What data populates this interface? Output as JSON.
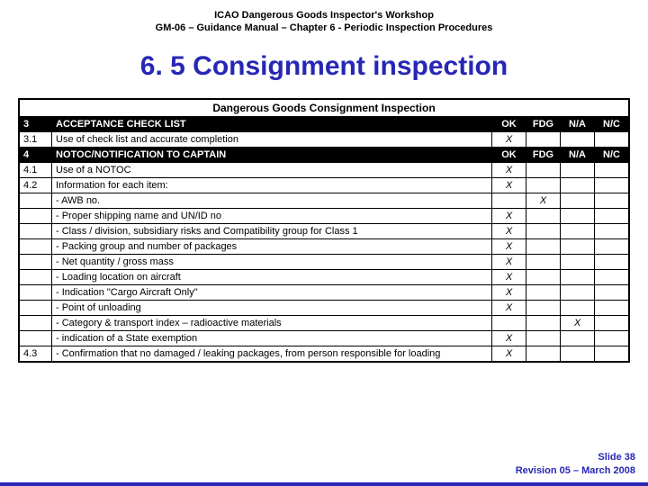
{
  "header": {
    "line1": "ICAO Dangerous Goods Inspector's Workshop",
    "line2": "GM-06 – Guidance Manual – Chapter 6 - Periodic Inspection Procedures"
  },
  "title": "6. 5 Consignment inspection",
  "table": {
    "caption": "Dangerous Goods Consignment Inspection",
    "columns": [
      "OK",
      "FDG",
      "N/A",
      "N/C"
    ],
    "sections": [
      {
        "num": "3",
        "label": "ACCEPTANCE CHECK LIST",
        "rows": [
          {
            "num": "3.1",
            "desc": "Use of check list and accurate completion",
            "ok": "X",
            "fdg": "",
            "na": "",
            "nc": ""
          }
        ]
      },
      {
        "num": "4",
        "label": "NOTOC/NOTIFICATION TO CAPTAIN",
        "rows": [
          {
            "num": "4.1",
            "desc": "Use of a NOTOC",
            "ok": "X",
            "fdg": "",
            "na": "",
            "nc": ""
          },
          {
            "num": "4.2",
            "desc": "Information for each item:",
            "ok": "X",
            "fdg": "",
            "na": "",
            "nc": ""
          },
          {
            "num": "",
            "desc": "- AWB no.",
            "ok": "",
            "fdg": "X",
            "na": "",
            "nc": ""
          },
          {
            "num": "",
            "desc": "- Proper shipping name and UN/ID no",
            "ok": "X",
            "fdg": "",
            "na": "",
            "nc": ""
          },
          {
            "num": "",
            "desc": "- Class / division, subsidiary risks and Compatibility group for Class 1",
            "ok": "X",
            "fdg": "",
            "na": "",
            "nc": ""
          },
          {
            "num": "",
            "desc": "- Packing group and number of packages",
            "ok": "X",
            "fdg": "",
            "na": "",
            "nc": ""
          },
          {
            "num": "",
            "desc": "- Net quantity / gross mass",
            "ok": "X",
            "fdg": "",
            "na": "",
            "nc": ""
          },
          {
            "num": "",
            "desc": "- Loading location on aircraft",
            "ok": "X",
            "fdg": "",
            "na": "",
            "nc": ""
          },
          {
            "num": "",
            "desc": "- Indication \"Cargo Aircraft Only\"",
            "ok": "X",
            "fdg": "",
            "na": "",
            "nc": ""
          },
          {
            "num": "",
            "desc": "- Point of unloading",
            "ok": "X",
            "fdg": "",
            "na": "",
            "nc": ""
          },
          {
            "num": "",
            "desc": "- Category & transport index – radioactive materials",
            "ok": "",
            "fdg": "",
            "na": "X",
            "nc": ""
          },
          {
            "num": "",
            "desc": "-  indication of a State exemption",
            "ok": "X",
            "fdg": "",
            "na": "",
            "nc": ""
          },
          {
            "num": "4.3",
            "desc": "- Confirmation that no damaged / leaking packages, from person responsible for loading",
            "ok": "X",
            "fdg": "",
            "na": "",
            "nc": ""
          }
        ]
      }
    ]
  },
  "footer": {
    "slide": "Slide 38",
    "revision": "Revision 05 – March 2008"
  },
  "colors": {
    "accent": "#2727b5",
    "header_bg": "#000000",
    "header_fg": "#ffffff"
  }
}
